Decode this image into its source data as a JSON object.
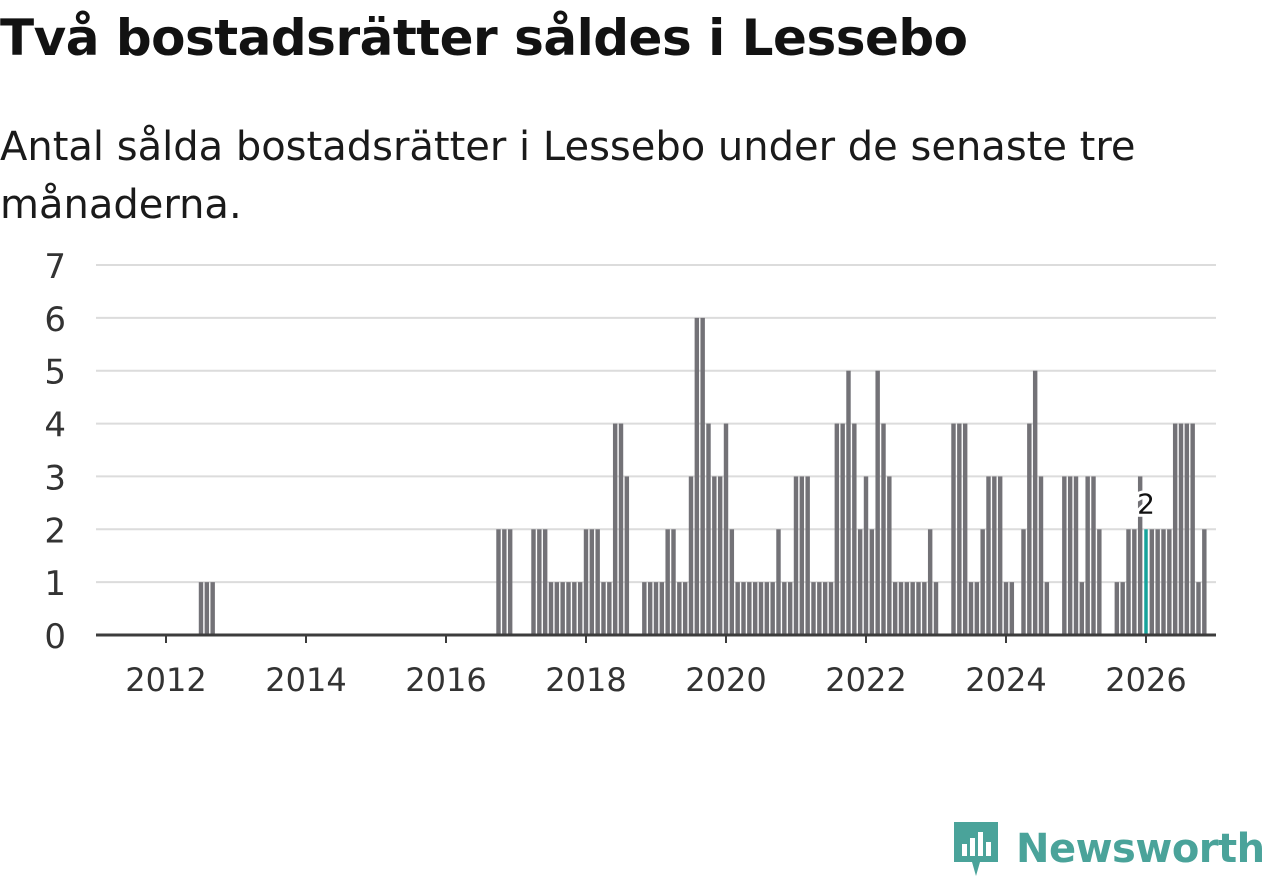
{
  "header": {
    "title": "Två bostadsrätter såldes i Lessebo",
    "subtitle": "Antal sålda bostadsrätter i Lessebo under de senaste tre månaderna."
  },
  "brand": {
    "name": "Newsworthy",
    "color": "#4aa39a",
    "icon": "newsworthy-bar-icon"
  },
  "colors": {
    "bar": "#737277",
    "highlight": "#17a39b",
    "grid": "#dcdcdc",
    "axis": "#3c3c3c"
  },
  "chart_data": {
    "type": "bar",
    "title": "Två bostadsrätter såldes i Lessebo",
    "subtitle": "Antal sålda bostadsrätter i Lessebo under de senaste tre månaderna.",
    "xlabel": "",
    "ylabel": "",
    "ylim": [
      0,
      7
    ],
    "yticks": [
      0,
      1,
      2,
      3,
      4,
      5,
      6,
      7
    ],
    "xlim": [
      2011.0,
      2027.0
    ],
    "xticks": [
      2012,
      2014,
      2016,
      2018,
      2020,
      2022,
      2024,
      2026
    ],
    "grid": true,
    "start": "2011-04",
    "bar_period": "month",
    "values": [
      0,
      0,
      0,
      0,
      0,
      0,
      0,
      0,
      0,
      0,
      0,
      0,
      0,
      0,
      0,
      1,
      1,
      1,
      0,
      0,
      0,
      0,
      0,
      0,
      0,
      0,
      0,
      0,
      0,
      0,
      0,
      0,
      0,
      0,
      0,
      0,
      0,
      0,
      0,
      0,
      0,
      0,
      0,
      0,
      0,
      0,
      0,
      0,
      0,
      0,
      0,
      0,
      0,
      0,
      0,
      0,
      0,
      0,
      0,
      0,
      0,
      0,
      0,
      0,
      0,
      0,
      2,
      2,
      2,
      0,
      0,
      0,
      2,
      2,
      2,
      1,
      1,
      1,
      1,
      1,
      1,
      2,
      2,
      2,
      1,
      1,
      4,
      4,
      3,
      0,
      0,
      1,
      1,
      1,
      1,
      2,
      2,
      1,
      1,
      3,
      6,
      6,
      4,
      3,
      3,
      4,
      2,
      1,
      1,
      1,
      1,
      1,
      1,
      1,
      2,
      1,
      1,
      3,
      3,
      3,
      1,
      1,
      1,
      1,
      4,
      4,
      5,
      4,
      2,
      3,
      2,
      5,
      4,
      3,
      1,
      1,
      1,
      1,
      1,
      1,
      2,
      1,
      0,
      0,
      4,
      4,
      4,
      1,
      1,
      2,
      3,
      3,
      3,
      1,
      1,
      0,
      2,
      4,
      5,
      3,
      1,
      0,
      0,
      3,
      3,
      3,
      1,
      3,
      3,
      2,
      0,
      0,
      1,
      1,
      2,
      2,
      3,
      2,
      2,
      2,
      2,
      2,
      4,
      4,
      4,
      4,
      1,
      2
    ],
    "highlight": {
      "label": "2",
      "value": 2,
      "index": 177
    }
  }
}
